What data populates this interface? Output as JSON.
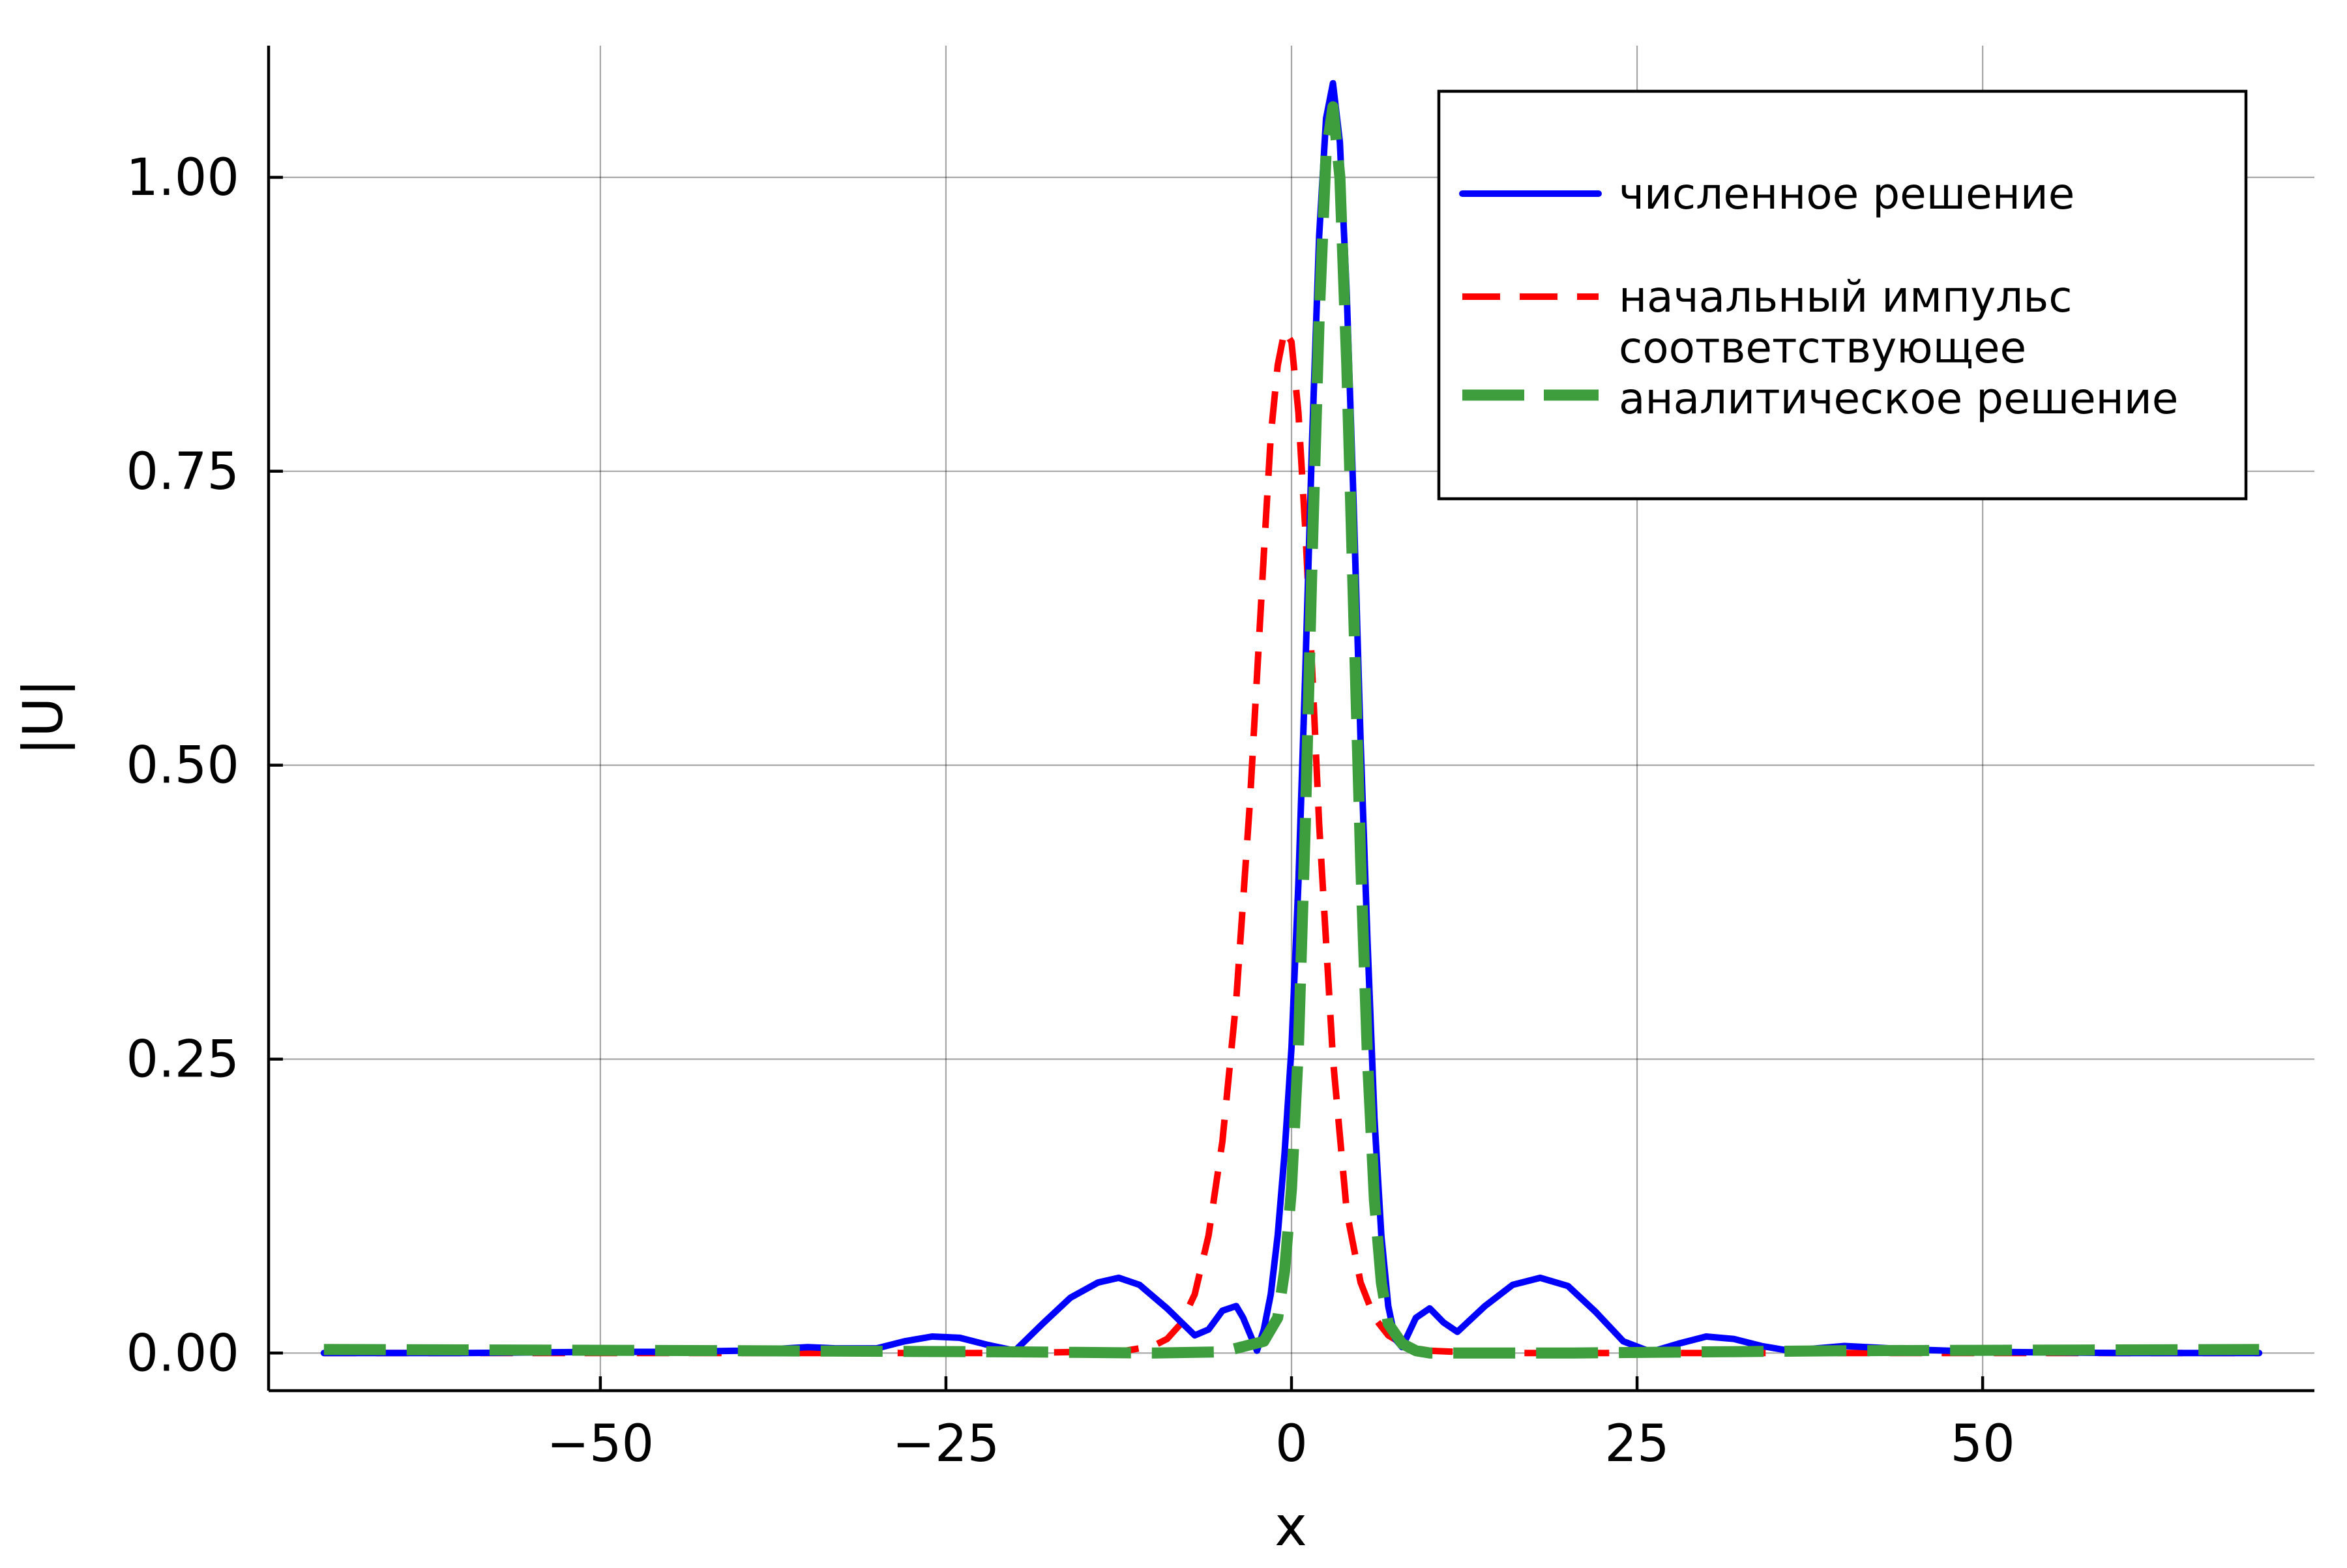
{
  "chart_data": {
    "type": "line",
    "xlabel": "x",
    "ylabel": "|U|",
    "xlim": [
      -74,
      74
    ],
    "ylim": [
      -0.032,
      1.112
    ],
    "xticks": [
      -50,
      -25,
      0,
      25,
      50
    ],
    "xtick_labels": [
      "−50",
      "−25",
      "0",
      "25",
      "50"
    ],
    "yticks": [
      0,
      0.25,
      0.5,
      0.75,
      1.0
    ],
    "ytick_labels": [
      "0.00",
      "0.25",
      "0.50",
      "0.75",
      "1.00"
    ],
    "grid": true,
    "legend_position": "top-right",
    "series": [
      {
        "name": "численное решение",
        "color": "#0000ff",
        "dash": "solid",
        "x": [
          -70,
          -60,
          -50,
          -45,
          -40,
          -38,
          -35,
          -33,
          -30,
          -28,
          -26,
          -24,
          -22,
          -20,
          -18,
          -16,
          -14,
          -12.5,
          -11,
          -9,
          -7,
          -6,
          -5,
          -4,
          -3.5,
          -2.5,
          -2,
          -1.5,
          -1,
          -0.5,
          0,
          0.5,
          1,
          1.5,
          2,
          2.5,
          3,
          3.5,
          4,
          4.5,
          5,
          5.5,
          6,
          6.5,
          7,
          7.5,
          8,
          9,
          10,
          11,
          12,
          14,
          16,
          18,
          20,
          22,
          24,
          26,
          28,
          30,
          32,
          34,
          36,
          38,
          40,
          45,
          50,
          60,
          70
        ],
        "y": [
          0.0,
          0.0,
          0.001,
          0.001,
          0.002,
          0.003,
          0.005,
          0.004,
          0.004,
          0.01,
          0.014,
          0.013,
          0.007,
          0.002,
          0.025,
          0.047,
          0.06,
          0.064,
          0.058,
          0.038,
          0.015,
          0.02,
          0.036,
          0.04,
          0.03,
          0.002,
          0.02,
          0.05,
          0.1,
          0.17,
          0.26,
          0.4,
          0.58,
          0.78,
          0.95,
          1.05,
          1.08,
          1.03,
          0.9,
          0.72,
          0.52,
          0.35,
          0.2,
          0.1,
          0.04,
          0.012,
          0.005,
          0.03,
          0.038,
          0.026,
          0.018,
          0.04,
          0.058,
          0.064,
          0.057,
          0.035,
          0.01,
          0.001,
          0.008,
          0.014,
          0.012,
          0.006,
          0.002,
          0.004,
          0.006,
          0.003,
          0.001,
          0.0,
          0.0
        ]
      },
      {
        "name": "начальный импульс",
        "color": "#ff0000",
        "dash": "dashed",
        "x": [
          -70,
          -40,
          -20,
          -15,
          -12,
          -10,
          -9,
          -8,
          -7,
          -6,
          -5,
          -4,
          -3,
          -2,
          -1.5,
          -1,
          -0.5,
          0,
          0.5,
          1,
          1.5,
          2,
          3,
          4,
          5,
          6,
          7,
          8,
          9,
          10,
          12,
          15,
          20,
          40,
          70
        ],
        "y": [
          0.0,
          0.0,
          0.0,
          0.001,
          0.002,
          0.006,
          0.012,
          0.025,
          0.05,
          0.1,
          0.18,
          0.3,
          0.47,
          0.68,
          0.78,
          0.84,
          0.87,
          0.86,
          0.8,
          0.7,
          0.58,
          0.45,
          0.25,
          0.12,
          0.06,
          0.03,
          0.015,
          0.008,
          0.004,
          0.002,
          0.001,
          0.0,
          0.0,
          0.0,
          0.0
        ]
      },
      {
        "name": "соответствующее аналитическое решение",
        "color": "#3e9e3e",
        "dash": "long-dash",
        "x": [
          -70,
          -40,
          -20,
          -10,
          -5,
          -2,
          -1,
          -0.5,
          0,
          0.5,
          1,
          1.5,
          2,
          2.5,
          3,
          3.5,
          4,
          4.5,
          5,
          5.5,
          6,
          6.5,
          7,
          8,
          9,
          10,
          12,
          15,
          20,
          40,
          70
        ],
        "y": [
          0.003,
          0.002,
          0.001,
          0.0,
          0.001,
          0.01,
          0.03,
          0.07,
          0.14,
          0.26,
          0.45,
          0.68,
          0.88,
          1.02,
          1.06,
          1.0,
          0.84,
          0.63,
          0.42,
          0.25,
          0.13,
          0.06,
          0.025,
          0.008,
          0.002,
          0.0,
          0.0,
          0.0,
          0.0,
          0.002,
          0.003
        ]
      }
    ]
  },
  "legend": {
    "items": [
      {
        "lines": [
          "численное решение"
        ],
        "color": "#0000ff",
        "dash": "solid"
      },
      {
        "lines": [
          "начальный импульс"
        ],
        "color": "#ff0000",
        "dash": "dashed"
      },
      {
        "lines": [
          "соответствующее",
          "аналитическое решение"
        ],
        "color": "#3e9e3e",
        "dash": "long-dash"
      }
    ]
  }
}
